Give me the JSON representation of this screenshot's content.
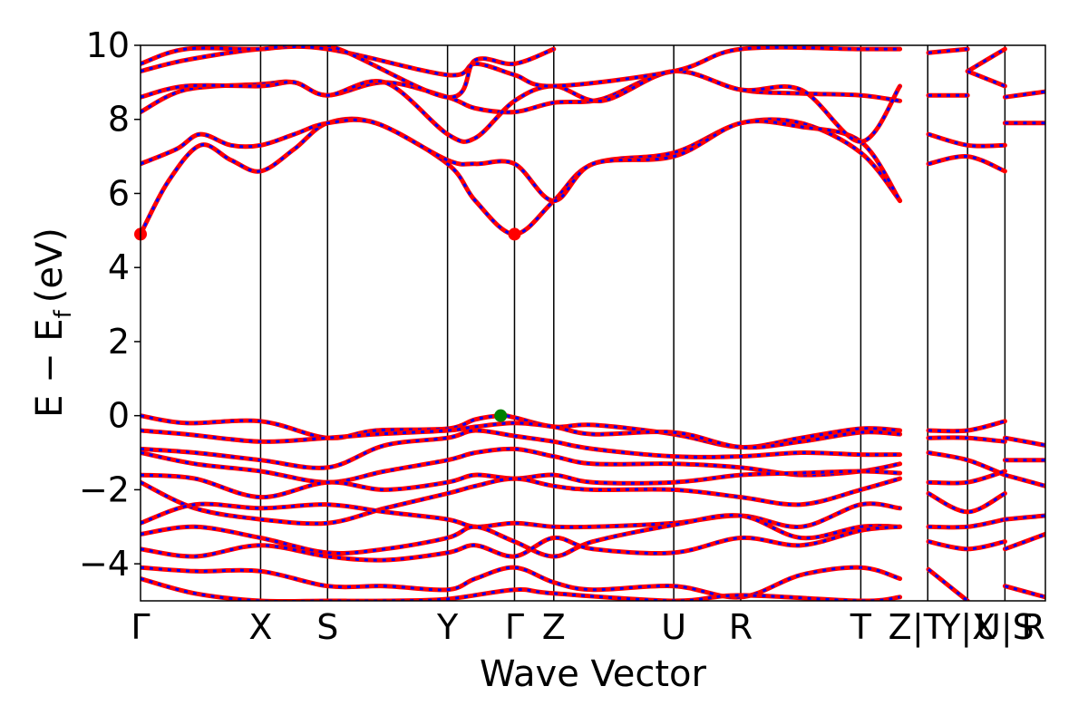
{
  "chart_data": {
    "type": "line",
    "xlabel": "Wave Vector",
    "ylabel_main": "E − E",
    "ylabel_sub": "f",
    "ylabel_unit": "(eV)",
    "ylim": [
      -5,
      10
    ],
    "y_ticks": [
      {
        "value": -4,
        "label": "−4"
      },
      {
        "value": -2,
        "label": "−2"
      },
      {
        "value": 0,
        "label": "0"
      },
      {
        "value": 2,
        "label": "2"
      },
      {
        "value": 4,
        "label": "4"
      },
      {
        "value": 6,
        "label": "6"
      },
      {
        "value": 8,
        "label": "8"
      },
      {
        "value": 10,
        "label": "10"
      }
    ],
    "kpoints": [
      {
        "label": "Γ",
        "x": 0.0
      },
      {
        "label": "X",
        "x": 0.1327
      },
      {
        "label": "S",
        "x": 0.2067
      },
      {
        "label": "Y",
        "x": 0.3393
      },
      {
        "label": "Γ",
        "x": 0.4133
      },
      {
        "label": "Z",
        "x": 0.4567
      },
      {
        "label": "U",
        "x": 0.5893
      },
      {
        "label": "R",
        "x": 0.6633
      },
      {
        "label": "T",
        "x": 0.796
      },
      {
        "label": "Z",
        "x": 0.8393
      },
      {
        "label": "|T",
        "x": 0.8707
      },
      {
        "label": "Y|X",
        "x": 0.914
      },
      {
        "label": "U|S",
        "x": 0.9553
      },
      {
        "label": "R",
        "x": 0.9867
      }
    ],
    "segment_boundaries": [
      0.0,
      0.1327,
      0.2067,
      0.3393,
      0.4133,
      0.4567,
      0.5893,
      0.6633,
      0.796,
      0.87,
      0.914,
      0.9553,
      1.0
    ],
    "line_colors": {
      "spin_up": "#ff0000",
      "spin_down": "#0000ff"
    },
    "vbm_marker": {
      "x": 0.398,
      "y": 0.0,
      "color": "#008000"
    },
    "cbm_markers": [
      {
        "x": 0.0,
        "y": 4.9,
        "color": "#ff0000"
      },
      {
        "x": 0.4133,
        "y": 4.9,
        "color": "#ff0000"
      }
    ],
    "conduction_bands": [
      {
        "x": [
          0,
          0.03,
          0.066,
          0.1,
          0.1327,
          0.17,
          0.2067,
          0.26,
          0.3393,
          0.37,
          0.4133,
          0.4567,
          0.5,
          0.5893,
          0.6633,
          0.73,
          0.796,
          0.8393
        ],
        "y": [
          4.9,
          6.3,
          7.3,
          6.9,
          6.6,
          7.2,
          7.9,
          7.9,
          6.8,
          5.8,
          4.9,
          5.8,
          6.8,
          7.1,
          7.9,
          7.9,
          7.1,
          5.8
        ]
      },
      {
        "x": [
          0,
          0.04,
          0.066,
          0.1,
          0.1327,
          0.17,
          0.2067,
          0.26,
          0.3393,
          0.37,
          0.4133,
          0.4567,
          0.5,
          0.5893,
          0.6633,
          0.73,
          0.796,
          0.8393
        ],
        "y": [
          6.8,
          7.2,
          7.6,
          7.3,
          7.3,
          7.6,
          7.9,
          7.9,
          6.9,
          6.8,
          6.8,
          5.8,
          6.8,
          7.0,
          7.9,
          7.8,
          7.4,
          5.8
        ]
      },
      {
        "x": [
          0,
          0.05,
          0.1327,
          0.17,
          0.2067,
          0.27,
          0.3393,
          0.37,
          0.4133,
          0.4567,
          0.51,
          0.5893,
          0.6633,
          0.73,
          0.796,
          0.8393
        ],
        "y": [
          8.2,
          8.8,
          8.95,
          9.0,
          8.65,
          9.0,
          8.6,
          8.3,
          8.2,
          8.45,
          8.55,
          9.3,
          8.8,
          8.7,
          8.65,
          8.5
        ]
      },
      {
        "x": [
          0,
          0.05,
          0.1327,
          0.17,
          0.2067,
          0.27,
          0.3393,
          0.37,
          0.4133,
          0.4567,
          0.51,
          0.5893,
          0.6633,
          0.73,
          0.796,
          0.8393
        ],
        "y": [
          8.6,
          8.9,
          8.9,
          9.0,
          8.65,
          9.0,
          7.6,
          7.5,
          8.5,
          8.9,
          8.5,
          9.3,
          8.8,
          8.8,
          7.4,
          8.9
        ]
      },
      {
        "x": [
          0,
          0.05,
          0.1327,
          0.2067,
          0.3393,
          0.37,
          0.4133,
          0.4567,
          0.5893,
          0.6633,
          0.796,
          0.8393
        ],
        "y": [
          9.3,
          9.6,
          9.9,
          9.9,
          9.2,
          9.5,
          9.2,
          8.9,
          9.3,
          9.9,
          9.9,
          9.9
        ]
      },
      {
        "x": [
          0,
          0.05,
          0.1327,
          0.2067,
          0.3393,
          0.37,
          0.4133,
          0.4567
        ],
        "y": [
          9.5,
          9.9,
          9.9,
          10.0,
          8.6,
          9.6,
          9.5,
          9.9
        ]
      }
    ],
    "conduction_bands_tail": [
      {
        "x": [
          0.8707,
          0.914,
          0.9553
        ],
        "y": [
          6.8,
          7.0,
          6.6
        ]
      },
      {
        "x": [
          0.8707,
          0.914,
          0.9553
        ],
        "y": [
          7.6,
          7.3,
          7.3
        ]
      },
      {
        "x": [
          0.8707,
          0.914
        ],
        "y": [
          8.65,
          8.65
        ]
      },
      {
        "x": [
          0.8707,
          0.914
        ],
        "y": [
          9.8,
          9.9
        ]
      },
      {
        "x": [
          0.914,
          0.9553
        ],
        "y": [
          9.3,
          9.9
        ]
      },
      {
        "x": [
          0.914,
          0.9553
        ],
        "y": [
          9.3,
          8.9
        ]
      },
      {
        "x": [
          0.9553,
          1.0
        ],
        "y": [
          8.6,
          8.75
        ]
      },
      {
        "x": [
          0.9553,
          1.0
        ],
        "y": [
          7.9,
          7.9
        ]
      }
    ],
    "valence_bands": [
      {
        "x": [
          0,
          0.05,
          0.1327,
          0.2067,
          0.26,
          0.3393,
          0.37,
          0.398,
          0.4133,
          0.4567,
          0.5,
          0.5893,
          0.6633,
          0.73,
          0.796,
          0.8393
        ],
        "y": [
          0.0,
          -0.2,
          -0.15,
          -0.6,
          -0.4,
          -0.35,
          -0.1,
          0.0,
          -0.05,
          -0.3,
          -0.25,
          -0.5,
          -0.85,
          -0.6,
          -0.35,
          -0.4
        ]
      },
      {
        "x": [
          0,
          0.05,
          0.1327,
          0.2067,
          0.26,
          0.3393,
          0.37,
          0.4133,
          0.4567,
          0.5,
          0.5893,
          0.6633,
          0.73,
          0.796,
          0.8393
        ],
        "y": [
          -0.4,
          -0.5,
          -0.7,
          -0.6,
          -0.5,
          -0.4,
          -0.3,
          -0.2,
          -0.3,
          -0.5,
          -0.45,
          -0.85,
          -0.7,
          -0.45,
          -0.5
        ]
      },
      {
        "x": [
          0,
          0.06,
          0.1327,
          0.2067,
          0.27,
          0.3393,
          0.37,
          0.4133,
          0.4567,
          0.5,
          0.5893,
          0.6633,
          0.73,
          0.796,
          0.8393
        ],
        "y": [
          -0.9,
          -1.0,
          -1.2,
          -1.4,
          -0.8,
          -0.6,
          -0.4,
          -0.55,
          -0.7,
          -0.9,
          -1.1,
          -1.1,
          -1.0,
          -1.05,
          -1.05
        ]
      },
      {
        "x": [
          0,
          0.06,
          0.1327,
          0.2067,
          0.27,
          0.3393,
          0.37,
          0.4133,
          0.4567,
          0.5,
          0.5893,
          0.6633,
          0.73,
          0.796,
          0.8393
        ],
        "y": [
          -1.0,
          -1.3,
          -1.5,
          -1.8,
          -1.5,
          -1.2,
          -1.0,
          -0.9,
          -1.1,
          -1.3,
          -1.3,
          -1.4,
          -1.6,
          -1.5,
          -1.3
        ]
      },
      {
        "x": [
          0,
          0.06,
          0.1327,
          0.2067,
          0.27,
          0.3393,
          0.37,
          0.4133,
          0.4567,
          0.5,
          0.5893,
          0.6633,
          0.73,
          0.796,
          0.8393
        ],
        "y": [
          -1.6,
          -1.7,
          -2.2,
          -1.8,
          -2.0,
          -1.8,
          -1.6,
          -1.7,
          -1.6,
          -1.8,
          -1.8,
          -1.6,
          -1.55,
          -1.5,
          -1.55
        ]
      },
      {
        "x": [
          0,
          0.06,
          0.1327,
          0.2067,
          0.27,
          0.3393,
          0.37,
          0.4133,
          0.4567,
          0.5,
          0.5893,
          0.6633,
          0.73,
          0.796,
          0.8393
        ],
        "y": [
          -1.8,
          -2.5,
          -2.8,
          -2.9,
          -2.5,
          -2.1,
          -1.9,
          -1.7,
          -1.9,
          -2.0,
          -2.0,
          -2.2,
          -2.4,
          -2.0,
          -1.7
        ]
      },
      {
        "x": [
          0,
          0.06,
          0.1327,
          0.2067,
          0.27,
          0.3393,
          0.37,
          0.4133,
          0.4567,
          0.5,
          0.5893,
          0.6633,
          0.73,
          0.796,
          0.8393
        ],
        "y": [
          -2.9,
          -2.4,
          -2.5,
          -2.4,
          -2.6,
          -2.8,
          -3.0,
          -2.9,
          -3.0,
          -3.0,
          -2.9,
          -2.7,
          -3.0,
          -2.4,
          -2.5
        ]
      },
      {
        "x": [
          0,
          0.06,
          0.1327,
          0.2067,
          0.27,
          0.3393,
          0.37,
          0.4133,
          0.4567,
          0.5,
          0.5893,
          0.6633,
          0.73,
          0.796,
          0.8393
        ],
        "y": [
          -3.2,
          -3.0,
          -3.3,
          -3.7,
          -3.6,
          -3.3,
          -3.0,
          -3.4,
          -3.8,
          -3.4,
          -2.95,
          -2.7,
          -3.3,
          -3.0,
          -3.0
        ]
      },
      {
        "x": [
          0,
          0.06,
          0.1327,
          0.2067,
          0.27,
          0.3393,
          0.37,
          0.4133,
          0.4567,
          0.5,
          0.5893,
          0.6633,
          0.73,
          0.796,
          0.8393
        ],
        "y": [
          -3.6,
          -3.8,
          -3.5,
          -3.8,
          -3.9,
          -3.7,
          -3.5,
          -3.8,
          -3.3,
          -3.6,
          -3.7,
          -3.3,
          -3.5,
          -3.1,
          -3.0
        ]
      },
      {
        "x": [
          0,
          0.06,
          0.1327,
          0.2067,
          0.27,
          0.3393,
          0.37,
          0.4133,
          0.4567,
          0.5,
          0.5893,
          0.6633,
          0.73,
          0.796,
          0.8393
        ],
        "y": [
          -4.1,
          -4.2,
          -4.2,
          -4.6,
          -4.6,
          -4.7,
          -4.4,
          -4.1,
          -4.5,
          -4.7,
          -4.6,
          -4.9,
          -4.3,
          -4.1,
          -4.4
        ]
      },
      {
        "x": [
          0,
          0.06,
          0.1327,
          0.2067,
          0.27,
          0.3393,
          0.4133,
          0.4567,
          0.5893,
          0.6633,
          0.796,
          0.8393
        ],
        "y": [
          -4.4,
          -4.8,
          -5.0,
          -5.0,
          -5.0,
          -4.95,
          -4.7,
          -4.8,
          -5.0,
          -4.85,
          -5.0,
          -4.9
        ]
      }
    ],
    "valence_bands_tail": [
      {
        "x": [
          0.8707,
          0.914,
          0.9553
        ],
        "y": [
          -0.4,
          -0.4,
          -0.15
        ]
      },
      {
        "x": [
          0.8707,
          0.914,
          0.9553
        ],
        "y": [
          -0.6,
          -0.6,
          -0.7
        ]
      },
      {
        "x": [
          0.8707,
          0.914,
          0.9553
        ],
        "y": [
          -1.0,
          -1.2,
          -1.6
        ]
      },
      {
        "x": [
          0.8707,
          0.914,
          0.9553
        ],
        "y": [
          -1.8,
          -1.8,
          -1.5
        ]
      },
      {
        "x": [
          0.8707,
          0.914,
          0.9553
        ],
        "y": [
          -2.1,
          -2.6,
          -2.1
        ]
      },
      {
        "x": [
          0.8707,
          0.914,
          0.9553
        ],
        "y": [
          -3.0,
          -3.0,
          -2.8
        ]
      },
      {
        "x": [
          0.8707,
          0.914,
          0.9553
        ],
        "y": [
          -3.4,
          -3.6,
          -3.4
        ]
      },
      {
        "x": [
          0.8707,
          0.914
        ],
        "y": [
          -4.15,
          -5.0
        ]
      },
      {
        "x": [
          0.9553,
          1.0
        ],
        "y": [
          -0.6,
          -0.8
        ]
      },
      {
        "x": [
          0.9553,
          1.0
        ],
        "y": [
          -1.2,
          -1.2
        ]
      },
      {
        "x": [
          0.9553,
          1.0
        ],
        "y": [
          -1.6,
          -1.9
        ]
      },
      {
        "x": [
          0.9553,
          1.0
        ],
        "y": [
          -2.8,
          -2.7
        ]
      },
      {
        "x": [
          0.9553,
          1.0
        ],
        "y": [
          -3.6,
          -3.2
        ]
      },
      {
        "x": [
          0.9553,
          1.0
        ],
        "y": [
          -4.6,
          -4.9
        ]
      }
    ]
  }
}
